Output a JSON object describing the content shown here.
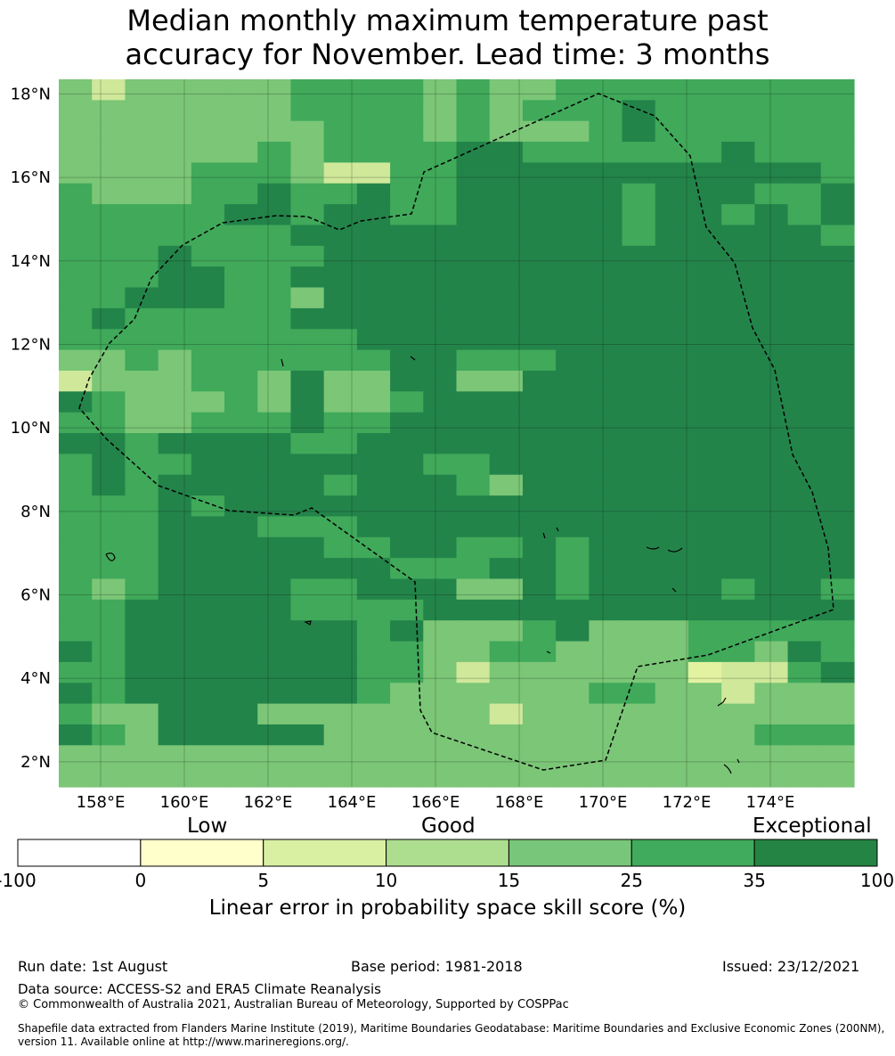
{
  "title_line1": "Median monthly maximum temperature past",
  "title_line2": "accuracy for November. Lead time: 3 months",
  "map": {
    "lat_ticks": [
      "18°N",
      "16°N",
      "14°N",
      "12°N",
      "10°N",
      "8°N",
      "6°N",
      "4°N",
      "2°N"
    ],
    "lon_ticks": [
      "158°E",
      "160°E",
      "162°E",
      "164°E",
      "166°E",
      "168°E",
      "170°E",
      "172°E",
      "174°E"
    ],
    "extent": {
      "lon_min": 157.0,
      "lon_max": 176.0,
      "lat_min": 1.4,
      "lat_max": 18.35
    },
    "cell_size_deg": 0.8333,
    "grid_rows_note_colors": {
      "L": "#cfe89a",
      "M": "#7bc677",
      "D": "#40a95a",
      "X": "#23844a",
      "W": "#e3f2a1"
    },
    "grid_rows": [
      "MLMMMMMDDDDMDMMDDDDDDDDD",
      "MMMMMMMDDDDMDMDDDXDDDDDD",
      "MMMMMMMMDDDMDMMMDXDDDDDD",
      "MMMMMMDMDDDDXXDDDDDDXDDD",
      "MMMMDDDMLLDDXXXXXXXXXXXD",
      "DMMMDDXDDXDDXXXXXDXXXDDX",
      "DDDDDXXDXXDDXXXXXDXXDXDX",
      "DDDDDDDXXXXXXXXXXDXXXXXD",
      "DDDXDDDDXXXXXXXXXXXXXXXX",
      "DDDXXDDXXXXXXXXXXXXXXXXX",
      "DDXXXDDMXXXXXXXXXXXXXXXX",
      "DXDDDDDXXXXXXXXXXXXXXXXX",
      "DDDDDDDDDXXXXXXXXXXXXXXX",
      "MMDMDDDDDDXXDDDXXXXXXXXX",
      "LMMMDDMXMMXXMMXXXXXXXXXX",
      "XDMMMDMXMMDXXXXXXXXXXXXX",
      "DDMMDDDXDDXXXXXXXXXXXXXX",
      "XXDXXXXDDXXXXXXXXXXXXXXX",
      "DXDDXXXXXXXDDXXXXXXXXXXX",
      "DXDXXXXXDXXXDMXXXXXXXXXX",
      "DDDXDXXXXXXXXXXXXXXXXXXX",
      "DDDXXXDDDXXXXXXXXXXXXXXX",
      "DDDXXXXXDDXXDDXDXXXXXXXX",
      "DDDXXXXXXXDDDXXDXXXXXXXX",
      "DMDXXXXDDXXXMMXDXXXXDXXD",
      "DDXXXXXDDDDXXXXXXXXXXXXX",
      "DDXXXXXXXDXMMMDXMMMDDDDD",
      "XDXXXXXXXDDMMDDMMMMDDMXD",
      "DDXXXXXXXDDMLMMMMMMWLLDX",
      "XDXXXXXXXDMMMMMMDDMMLMMM",
      "DMMXXXMMMMMMMLMMMMMMMMMM",
      "XDMXXXXXMMMMMMMMMMMMMDDD",
      "MMMMMMMMMMMMMMMMMMMMMMMM",
      "MMMMMMMMMMMMMMMMMMMMMMMM"
    ]
  },
  "colorbar": {
    "word_low": "Low",
    "word_good": "Good",
    "word_exceptional": "Exceptional",
    "segments": [
      {
        "from": "-100",
        "to": "0",
        "color": "#ffffff"
      },
      {
        "from": "0",
        "to": "5",
        "color": "#ffffcc"
      },
      {
        "from": "5",
        "to": "10",
        "color": "#d9f0a3"
      },
      {
        "from": "10",
        "to": "15",
        "color": "#addd8e"
      },
      {
        "from": "15",
        "to": "25",
        "color": "#78c679"
      },
      {
        "from": "25",
        "to": "35",
        "color": "#41ab5d"
      },
      {
        "from": "35",
        "to": "100",
        "color": "#238443"
      }
    ],
    "ticks": [
      "-100",
      "0",
      "5",
      "10",
      "15",
      "25",
      "35",
      "100"
    ],
    "label": "Linear error in probability space skill score (%)"
  },
  "footer": {
    "run_date": "Run date: 1st August",
    "base_period": "Base period: 1981-2018",
    "issued": "Issued: 23/12/2021",
    "data_source": "Data source: ACCESS-S2 and ERA5 Climate Reanalysis",
    "copyright": "© Commonwealth of Australia 2021, Australian Bureau of Meteorology, Supported by COSPPac",
    "shapefile_line1": "Shapefile data extracted from Flanders Marine Institute (2019), Maritime Boundaries Geodatabase: Maritime Boundaries and Exclusive Economic Zones (200NM),",
    "shapefile_line2": "version 11. Available online at http://www.marineregions.org/."
  }
}
